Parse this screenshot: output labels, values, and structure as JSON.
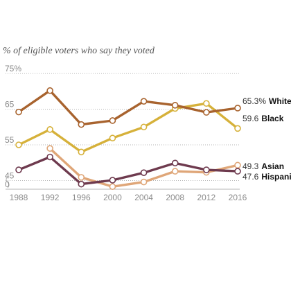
{
  "chart_data": {
    "type": "line",
    "title": "",
    "subtitle": "% of eligible voters who say they voted",
    "xlabel": "",
    "ylabel": "",
    "x": [
      1988,
      1992,
      1996,
      2000,
      2004,
      2008,
      2012,
      2016
    ],
    "x_tick_labels": [
      "1988",
      "1992",
      "1996",
      "2000",
      "2004",
      "2008",
      "2012",
      "2016"
    ],
    "y_ticks": [
      0,
      45,
      55,
      65,
      75
    ],
    "y_tick_labels": [
      "0",
      "45",
      "55",
      "65",
      "75%"
    ],
    "ylim": [
      0,
      75
    ],
    "axis_break": true,
    "grid": true,
    "legend": "end-labels",
    "series": [
      {
        "name": "White",
        "end_value_label": "65.3%",
        "color": "#a8632e",
        "values": [
          64.2,
          70.2,
          60.7,
          61.8,
          67.2,
          66.1,
          64.1,
          65.3
        ]
      },
      {
        "name": "Black",
        "end_value_label": "59.6",
        "color": "#d6b13a",
        "values": [
          55.0,
          59.3,
          53.0,
          56.9,
          60.0,
          65.2,
          66.6,
          59.6
        ]
      },
      {
        "name": "Asian",
        "end_value_label": "49.3",
        "color": "#dfa678",
        "values": [
          null,
          54.0,
          45.9,
          43.3,
          44.6,
          47.6,
          47.3,
          49.3
        ]
      },
      {
        "name": "Hispanic",
        "end_value_label": "47.6",
        "color": "#6e3a4e",
        "values": [
          48.0,
          51.6,
          44.0,
          45.1,
          47.2,
          49.9,
          48.0,
          47.6
        ]
      }
    ]
  }
}
